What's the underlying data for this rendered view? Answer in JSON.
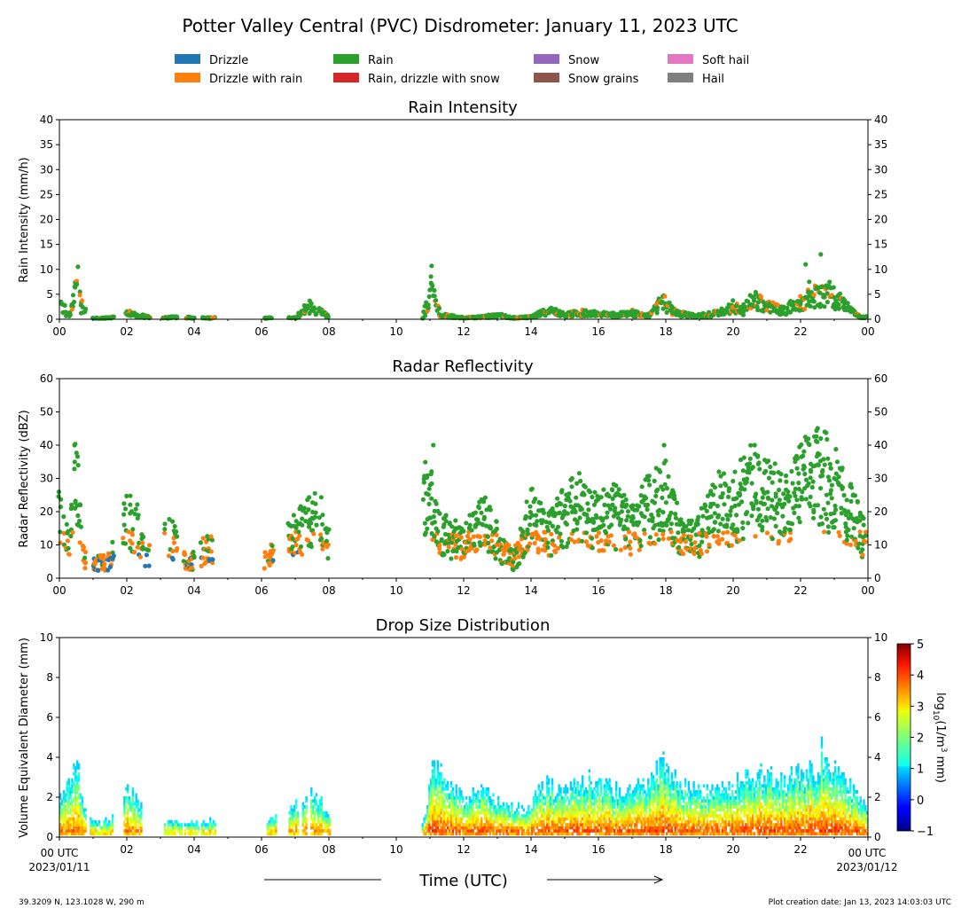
{
  "title": "Potter Valley Central (PVC) Disdrometer: January 11, 2023 UTC",
  "legend": [
    {
      "label": "Drizzle",
      "color": "#1f77b4"
    },
    {
      "label": "Drizzle with rain",
      "color": "#ff7f0e"
    },
    {
      "label": "Rain",
      "color": "#2ca02c"
    },
    {
      "label": "Rain, drizzle with snow",
      "color": "#d62728"
    },
    {
      "label": "Snow",
      "color": "#9467bd"
    },
    {
      "label": "Snow grains",
      "color": "#8c564b"
    },
    {
      "label": "Soft hail",
      "color": "#e377c2"
    },
    {
      "label": "Hail",
      "color": "#7f7f7f"
    }
  ],
  "footer": {
    "xlabel": "Time (UTC)",
    "start_label": "00 UTC",
    "start_date": "2023/01/11",
    "end_label": "00 UTC",
    "end_date": "2023/01/12",
    "location": "39.3209 N, 123.1028 W, 290 m",
    "created": "Plot creation date: Jan 13, 2023 14:03:03 UTC"
  },
  "chart_data": [
    {
      "type": "scatter",
      "title": "Rain Intensity",
      "ylabel": "Rain Intensity (mm/h)",
      "xlabel": "Time (UTC)",
      "xlim": [
        0,
        24
      ],
      "ylim": [
        0,
        40
      ],
      "yticks": [
        0,
        5,
        10,
        15,
        20,
        25,
        30,
        35,
        40
      ],
      "xtick_labels": [
        "00",
        "02",
        "04",
        "06",
        "08",
        "10",
        "12",
        "14",
        "16",
        "18",
        "20",
        "22",
        "00"
      ],
      "activity_envelope": {
        "hours": [
          0.0,
          0.15,
          0.3,
          0.5,
          0.7,
          1.0,
          1.5,
          2.0,
          2.4,
          3.0,
          3.5,
          4.0,
          4.5,
          6.0,
          6.3,
          7.0,
          7.4,
          7.8,
          8.0,
          10.8,
          11.05,
          11.3,
          12.0,
          12.5,
          13.0,
          13.5,
          14.0,
          14.5,
          15.0,
          15.5,
          16.0,
          16.5,
          17.0,
          17.5,
          17.9,
          18.3,
          18.8,
          19.2,
          19.6,
          20.0,
          20.3,
          20.5,
          20.8,
          21.0,
          21.5,
          22.0,
          22.3,
          22.6,
          22.9,
          23.2,
          23.5,
          23.8
        ],
        "values": [
          5,
          2,
          1,
          7,
          2,
          0.3,
          0.3,
          1.5,
          0.8,
          0.3,
          0.5,
          0.3,
          0.3,
          0.2,
          0.3,
          0.3,
          3,
          1.5,
          0.5,
          0.3,
          7,
          1,
          0.3,
          0.5,
          1,
          0.3,
          0.5,
          2,
          1,
          1.5,
          1.2,
          1,
          1.5,
          0.8,
          4,
          1.5,
          0.8,
          1,
          1.5,
          3,
          2,
          5,
          4.5,
          3,
          2,
          4,
          6,
          5,
          6,
          4,
          2,
          0.5
        ]
      },
      "notable_peaks": [
        {
          "hour": 0.55,
          "value": 10.5
        },
        {
          "hour": 11.05,
          "value": 10.7
        },
        {
          "hour": 22.15,
          "value": 11
        },
        {
          "hour": 22.6,
          "value": 13
        }
      ]
    },
    {
      "type": "scatter",
      "title": "Radar Reflectivity",
      "ylabel": "Radar Reflectivity (dBZ)",
      "xlabel": "Time (UTC)",
      "xlim": [
        0,
        24
      ],
      "ylim": [
        0,
        60
      ],
      "yticks": [
        0,
        10,
        20,
        30,
        40,
        50,
        60
      ],
      "xtick_labels": [
        "00",
        "02",
        "04",
        "06",
        "08",
        "10",
        "12",
        "14",
        "16",
        "18",
        "20",
        "22",
        "00"
      ],
      "activity_envelope": {
        "hours": [
          0.0,
          0.3,
          0.5,
          0.7,
          1.0,
          1.5,
          2.0,
          2.3,
          2.6,
          3.3,
          3.8,
          4.3,
          4.6,
          6.2,
          6.9,
          7.3,
          7.7,
          7.95,
          11.0,
          11.2,
          11.5,
          12.0,
          12.6,
          13.2,
          13.5,
          14.0,
          14.5,
          15.0,
          15.5,
          16.0,
          16.5,
          17.0,
          17.5,
          18.0,
          18.5,
          19.0,
          19.5,
          20.0,
          20.5,
          21.0,
          21.5,
          22.0,
          22.5,
          23.0,
          23.5,
          24.0
        ],
        "values": [
          20,
          10,
          35,
          8,
          5,
          6,
          20,
          18,
          7,
          15,
          4,
          10,
          11,
          7,
          14,
          18,
          22,
          12,
          28,
          18,
          15,
          12,
          20,
          9,
          6,
          22,
          15,
          22,
          25,
          20,
          22,
          17,
          25,
          28,
          13,
          15,
          25,
          24,
          32,
          28,
          25,
          32,
          36,
          32,
          22,
          12
        ]
      },
      "notable_peaks": [
        {
          "hour": 0.45,
          "value": 40
        },
        {
          "hour": 11.1,
          "value": 40
        },
        {
          "hour": 17.95,
          "value": 40
        },
        {
          "hour": 22.6,
          "value": 42
        }
      ]
    },
    {
      "type": "heatmap",
      "title": "Drop Size Distribution",
      "ylabel": "Volume Equivalent Diameter (mm)",
      "xlabel": "Time (UTC)",
      "xlim": [
        0,
        24
      ],
      "ylim": [
        0,
        10
      ],
      "yticks": [
        0,
        2,
        4,
        6,
        8,
        10
      ],
      "xtick_labels": [
        "00",
        "02",
        "04",
        "06",
        "08",
        "10",
        "12",
        "14",
        "16",
        "18",
        "20",
        "22",
        "00"
      ],
      "colorbar": {
        "label": "log10(1/m^3 mm)",
        "label_main": "log",
        "label_sub": "10",
        "label_rest": "(1/m",
        "label_sup": "3",
        "label_tail": " mm)",
        "ticks": [
          -1,
          0,
          1,
          2,
          3,
          4,
          5
        ],
        "range": [
          -1,
          5
        ],
        "colormap": "jet"
      },
      "max_diameter_envelope": {
        "hours": [
          0.0,
          0.5,
          0.7,
          1.0,
          1.5,
          2.0,
          2.3,
          3.0,
          3.5,
          4.0,
          4.5,
          6.2,
          7.0,
          7.5,
          7.9,
          10.8,
          11.1,
          11.4,
          12.0,
          12.5,
          13.0,
          13.8,
          14.2,
          15.0,
          15.5,
          16.0,
          16.5,
          17.0,
          17.5,
          17.9,
          18.3,
          19.0,
          19.5,
          20.0,
          20.3,
          20.7,
          21.0,
          21.5,
          22.0,
          22.5,
          22.6,
          23.0,
          23.5,
          24.0
        ],
        "values": [
          2,
          4,
          1.8,
          0.8,
          0.8,
          2.5,
          2,
          0.8,
          0.8,
          0.8,
          0.8,
          0.8,
          2,
          2.5,
          1.5,
          0.8,
          4,
          3,
          2,
          2.5,
          2,
          1.5,
          2.8,
          2.5,
          3,
          3,
          2.5,
          2.5,
          3,
          4,
          3,
          2.5,
          2.5,
          3,
          3,
          3.5,
          3.5,
          3,
          3.5,
          3.5,
          4.5,
          3.5,
          2.5,
          1.5
        ]
      }
    }
  ]
}
